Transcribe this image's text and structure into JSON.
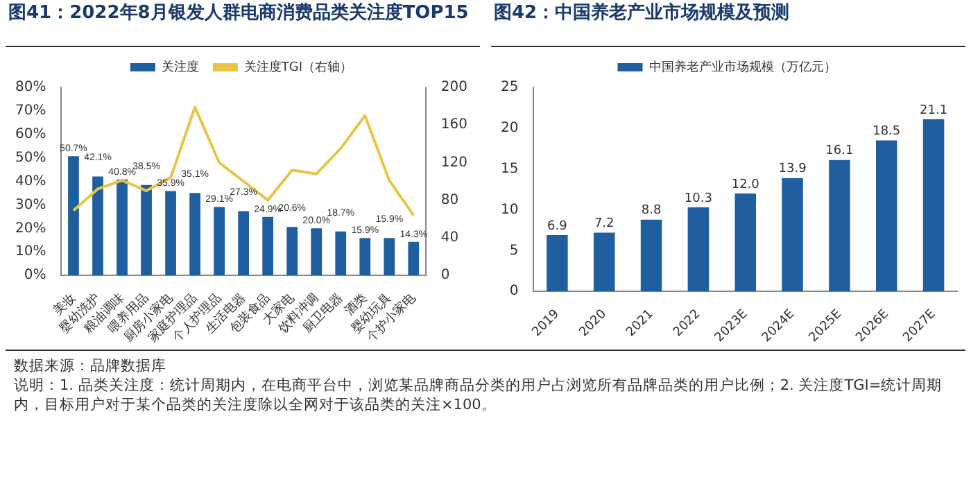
{
  "chart_data": [
    {
      "type": "bar",
      "title": "图41：2022年8月银发人群电商消费品类关注度TOP15",
      "categories": [
        "美妆",
        "婴幼洗护",
        "粮油调味",
        "喂养用品",
        "厨房小家电",
        "家庭护理品",
        "个人护理品",
        "生活电器",
        "包装食品",
        "大家电",
        "饮料冲调",
        "厨卫电器",
        "酒类",
        "婴幼玩具",
        "个护小家电"
      ],
      "series": [
        {
          "name": "关注度",
          "type": "bar",
          "color": "#1f5fa0",
          "values": [
            50.7,
            42.1,
            40.8,
            38.5,
            35.9,
            35.1,
            29.1,
            27.3,
            24.9,
            20.6,
            20.0,
            18.7,
            15.9,
            15.9,
            14.3
          ],
          "value_labels": [
            "50.7%",
            "42.1%",
            "40.8%",
            "38.5%",
            "35.9%",
            "35.1%",
            "29.1%",
            "27.3%",
            "24.9%",
            "20.6%",
            "20.0%",
            "18.7%",
            "15.9%",
            "15.9%",
            "14.3%"
          ]
        },
        {
          "name": "关注度TGI（右轴）",
          "type": "line",
          "axis": "y2",
          "color": "#e8c547",
          "values": [
            69,
            92,
            101,
            90,
            104,
            179,
            120,
            100,
            80,
            112,
            108,
            135,
            170,
            101,
            64
          ]
        }
      ],
      "ylim": [
        0,
        80
      ],
      "yticks": [
        {
          "value": 0,
          "label": "0%"
        },
        {
          "value": 10,
          "label": "10%"
        },
        {
          "value": 20,
          "label": "20%"
        },
        {
          "value": 30,
          "label": "30%"
        },
        {
          "value": 40,
          "label": "40%"
        },
        {
          "value": 50,
          "label": "50%"
        },
        {
          "value": 60,
          "label": "60%"
        },
        {
          "value": 70,
          "label": "70%"
        },
        {
          "value": 80,
          "label": "80%"
        }
      ],
      "y2lim": [
        0,
        200
      ],
      "y2ticks": [
        0,
        40,
        80,
        120,
        160,
        200
      ],
      "marker": "none",
      "legend": "top",
      "grid": false,
      "annotations": [
        "数据来源：品牌数据库",
        "说明：1. 品类关注度：统计周期内，在电商平台中，浏览某品牌商品分类的用户占浏览所有品牌品类的用户比例；2. 关注度TGI=统计周期内，目标用户对于某个品类的关注度除以全网对于该品类的关注×100。"
      ]
    },
    {
      "type": "bar",
      "title": "图42：中国养老产业市场规模及预测",
      "categories": [
        "2019",
        "2020",
        "2021",
        "2022",
        "2023E",
        "2024E",
        "2025E",
        "2026E",
        "2027E"
      ],
      "series": [
        {
          "name": "中国养老产业市场规模（万亿元）",
          "color": "#1f5fa0",
          "values": [
            6.9,
            7.2,
            8.8,
            10.3,
            12.0,
            13.9,
            16.1,
            18.5,
            21.1
          ],
          "value_labels": [
            "6.9",
            "7.2",
            "8.8",
            "10.3",
            "12.0",
            "13.9",
            "16.1",
            "18.5",
            "21.1"
          ]
        }
      ],
      "ylim": [
        0,
        25
      ],
      "yticks": [
        0,
        5,
        10,
        15,
        20,
        25
      ],
      "legend": "top",
      "grid": false
    }
  ]
}
